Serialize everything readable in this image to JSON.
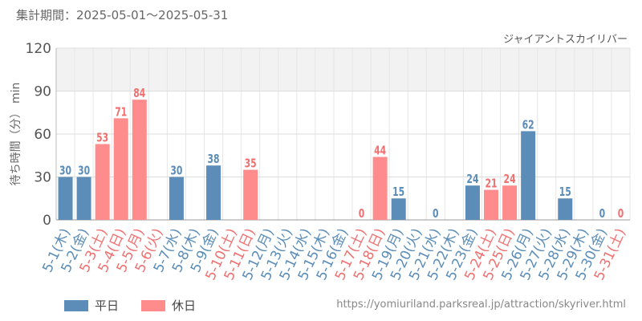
{
  "period_label": "集計期間：2025-05-01～2025-05-31",
  "source_url": "https://yomiuriland.parksreal.jp/attraction/skyriver.html",
  "chart_data": {
    "type": "bar",
    "title": "ジャイアントスカイリバー",
    "ylabel": "待ち時間（分） min",
    "ylim": [
      0,
      120
    ],
    "yticks": [
      0,
      30,
      60,
      90,
      120
    ],
    "grid": true,
    "legend_placement": "bottom-left",
    "categories": [
      "5-1(木)",
      "5-2(金)",
      "5-3(土)",
      "5-4(日)",
      "5-5(月)",
      "5-6(火)",
      "5-7(水)",
      "5-8(木)",
      "5-9(金)",
      "5-10(土)",
      "5-11(日)",
      "5-12(月)",
      "5-13(火)",
      "5-14(水)",
      "5-15(木)",
      "5-16(金)",
      "5-17(土)",
      "5-18(日)",
      "5-19(月)",
      "5-20(火)",
      "5-21(水)",
      "5-22(木)",
      "5-23(金)",
      "5-24(土)",
      "5-25(日)",
      "5-26(月)",
      "5-27(火)",
      "5-28(水)",
      "5-29(木)",
      "5-30(金)",
      "5-31(土)"
    ],
    "holiday": [
      false,
      false,
      true,
      true,
      true,
      true,
      false,
      false,
      false,
      true,
      true,
      false,
      false,
      false,
      false,
      false,
      true,
      true,
      false,
      false,
      false,
      false,
      false,
      true,
      true,
      false,
      false,
      false,
      false,
      false,
      true
    ],
    "values": [
      30,
      30,
      53,
      71,
      84,
      null,
      30,
      null,
      38,
      null,
      35,
      null,
      null,
      null,
      null,
      null,
      0,
      44,
      15,
      null,
      0,
      null,
      24,
      21,
      24,
      62,
      null,
      15,
      null,
      0,
      0
    ],
    "series": [
      {
        "name": "平日",
        "color": "#5b8db8"
      },
      {
        "name": "休日",
        "color": "#ff8c8c"
      }
    ],
    "label_colors": {
      "weekday": "#5b8db8",
      "holiday": "#f07070"
    }
  }
}
